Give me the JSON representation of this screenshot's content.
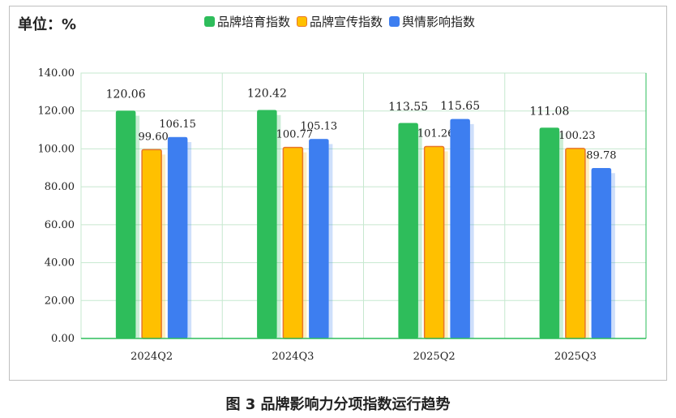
{
  "unit_label": "单位：%",
  "caption": "图 3  品牌影响力分项指数运行趋势",
  "chart_data": {
    "type": "bar",
    "title": "",
    "xlabel": "",
    "ylabel": "",
    "ylim": [
      0,
      140
    ],
    "yticks": [
      "0.00",
      "20.00",
      "40.00",
      "60.00",
      "80.00",
      "100.00",
      "120.00",
      "140.00"
    ],
    "categories": [
      "2024Q2",
      "2024Q3",
      "2025Q2",
      "2025Q3"
    ],
    "series": [
      {
        "name": "品牌培育指数",
        "color": "#2ebd5b",
        "values": [
          120.06,
          120.42,
          113.55,
          111.08
        ],
        "labels": [
          "120.06",
          "120.42",
          "113.55",
          "111.08"
        ]
      },
      {
        "name": "品牌宣传指数",
        "color": "#ffc000",
        "border": "#e8762b",
        "values": [
          99.6,
          100.77,
          101.26,
          100.23
        ],
        "labels": [
          "99.60",
          "100.77",
          "101.26",
          "100.23"
        ]
      },
      {
        "name": "舆情影响指数",
        "color": "#3d7ef0",
        "values": [
          106.15,
          105.13,
          115.65,
          89.78
        ],
        "labels": [
          "106.15",
          "105.13",
          "115.65",
          "89.78"
        ]
      }
    ],
    "grid": true,
    "legend_position": "top"
  }
}
